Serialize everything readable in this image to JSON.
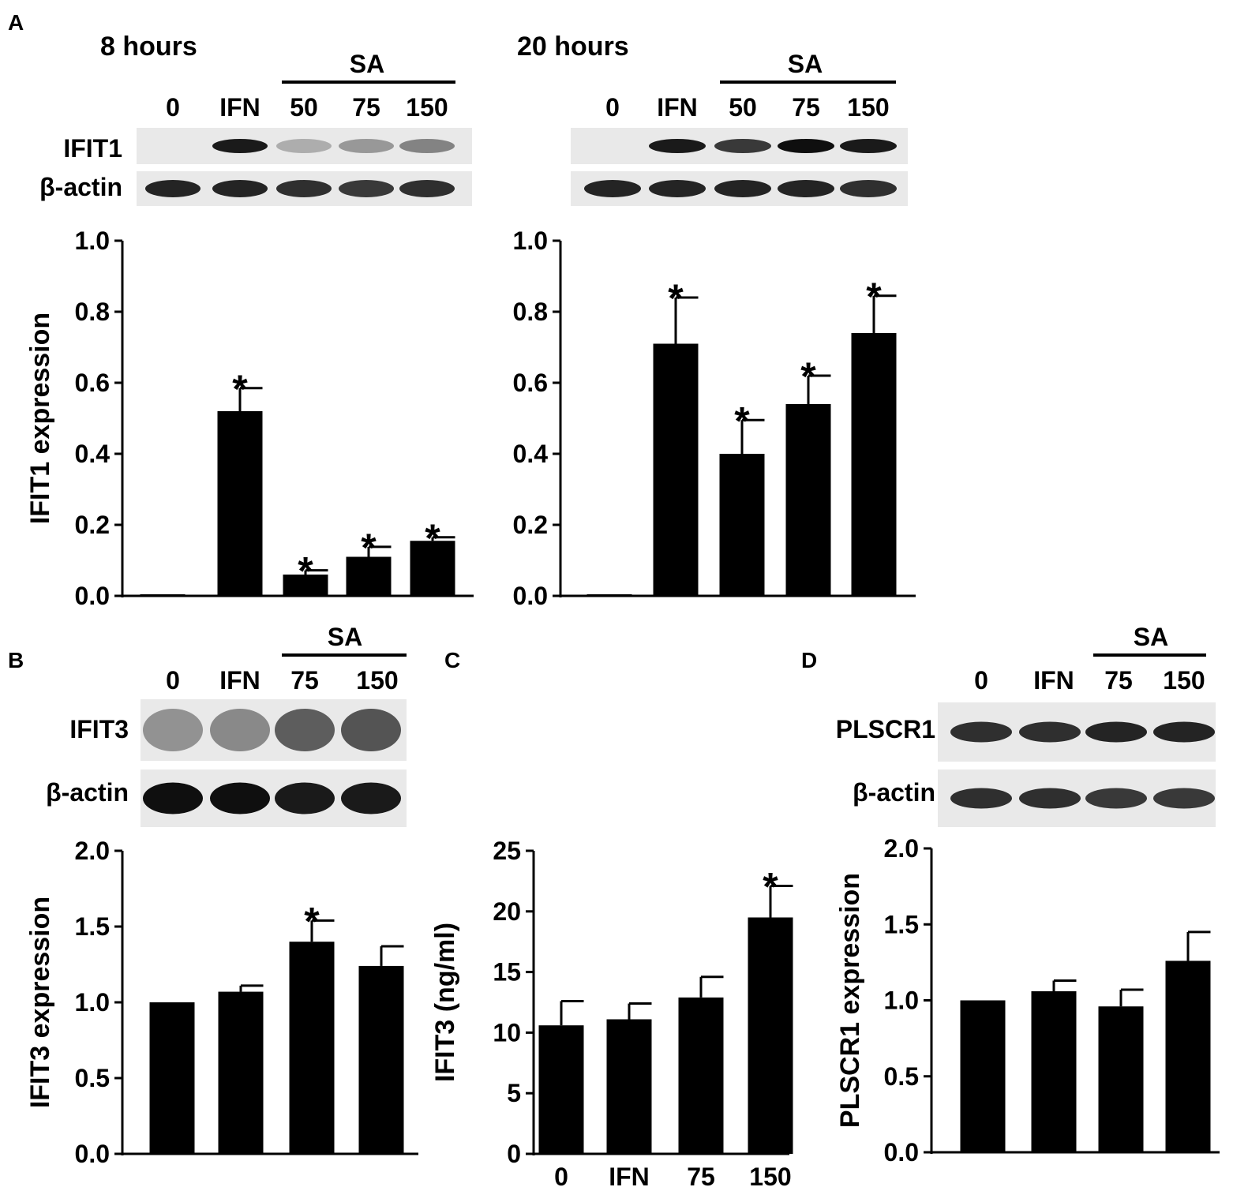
{
  "panels": {
    "A": {
      "letter": "A",
      "left": {
        "title": "8 hours",
        "sa_label": "SA",
        "lane_labels": [
          "0",
          "IFN",
          "50",
          "75",
          "150"
        ],
        "row_labels": [
          "IFIT1",
          "β-actin"
        ],
        "blot": {
          "ifit1": [
            0.0,
            0.95,
            0.25,
            0.35,
            0.45
          ],
          "actin": [
            0.9,
            0.9,
            0.85,
            0.8,
            0.85
          ]
        }
      },
      "right": {
        "title": "20 hours",
        "sa_label": "SA",
        "lane_labels": [
          "0",
          "IFN",
          "50",
          "75",
          "150"
        ],
        "blot": {
          "ifit1": [
            0.0,
            0.95,
            0.8,
            1.0,
            0.95
          ],
          "actin": [
            0.9,
            0.9,
            0.9,
            0.9,
            0.85
          ]
        }
      }
    },
    "B": {
      "letter": "B",
      "sa_label": "SA",
      "lane_labels": [
        "0",
        "IFN",
        "75",
        "150"
      ],
      "row_labels": [
        "IFIT3",
        "β-actin"
      ],
      "blot": {
        "ifit3": [
          0.45,
          0.5,
          0.75,
          0.8
        ],
        "actin": [
          1.0,
          1.0,
          0.95,
          0.95
        ]
      }
    },
    "C": {
      "letter": "C"
    },
    "D": {
      "letter": "D",
      "sa_label": "SA",
      "lane_labels": [
        "0",
        "IFN",
        "75",
        "150"
      ],
      "row_labels": [
        "PLSCR1",
        "β-actin"
      ],
      "blot": {
        "plscr1": [
          0.85,
          0.85,
          0.9,
          0.9
        ],
        "actin": [
          0.85,
          0.85,
          0.8,
          0.8
        ]
      }
    }
  },
  "chart_data": [
    {
      "id": "A-8h",
      "type": "bar",
      "categories": [
        "0",
        "IFN",
        "50",
        "75",
        "150"
      ],
      "values": [
        0.0,
        0.52,
        0.06,
        0.11,
        0.155
      ],
      "errors": [
        0.0,
        0.065,
        0.012,
        0.028,
        0.01
      ],
      "significant": [
        false,
        true,
        true,
        true,
        true
      ],
      "ylabel": "IFIT1 expression",
      "ylim": [
        0,
        1.0
      ],
      "yticks": [
        "0.0",
        "0.2",
        "0.4",
        "0.6",
        "0.8",
        "1.0"
      ],
      "show_xtick_labels": false,
      "color": "#000000"
    },
    {
      "id": "A-20h",
      "type": "bar",
      "categories": [
        "0",
        "IFN",
        "50",
        "75",
        "150"
      ],
      "values": [
        0.0,
        0.71,
        0.4,
        0.54,
        0.74
      ],
      "errors": [
        0.0,
        0.13,
        0.095,
        0.08,
        0.105
      ],
      "significant": [
        false,
        true,
        true,
        true,
        true
      ],
      "ylabel": "",
      "ylim": [
        0,
        1.0
      ],
      "yticks": [
        "0.0",
        "0.2",
        "0.4",
        "0.6",
        "0.8",
        "1.0"
      ],
      "show_xtick_labels": false,
      "color": "#000000"
    },
    {
      "id": "B",
      "type": "bar",
      "categories": [
        "0",
        "IFN",
        "75",
        "150"
      ],
      "values": [
        1.0,
        1.07,
        1.4,
        1.24
      ],
      "errors": [
        0.0,
        0.04,
        0.14,
        0.13
      ],
      "significant": [
        false,
        false,
        true,
        false
      ],
      "ylabel": "IFIT3 expression",
      "ylim": [
        0,
        2.0
      ],
      "yticks": [
        "0.0",
        "0.5",
        "1.0",
        "1.5",
        "2.0"
      ],
      "show_xtick_labels": false,
      "color": "#000000"
    },
    {
      "id": "C",
      "type": "bar",
      "categories": [
        "0",
        "IFN",
        "75",
        "150"
      ],
      "values": [
        10.6,
        11.1,
        12.9,
        19.5
      ],
      "errors": [
        2.0,
        1.3,
        1.7,
        2.6
      ],
      "significant": [
        false,
        false,
        false,
        true
      ],
      "ylabel": "IFIT3 (ng/ml)",
      "ylim": [
        0,
        25
      ],
      "yticks": [
        "0",
        "5",
        "10",
        "15",
        "20",
        "25"
      ],
      "show_xtick_labels": true,
      "color": "#000000"
    },
    {
      "id": "D",
      "type": "bar",
      "categories": [
        "0",
        "IFN",
        "75",
        "150"
      ],
      "values": [
        1.0,
        1.06,
        0.96,
        1.26
      ],
      "errors": [
        0.0,
        0.07,
        0.11,
        0.19
      ],
      "significant": [
        false,
        false,
        false,
        false
      ],
      "ylabel": "PLSCR1 expression",
      "ylim": [
        0,
        2.0
      ],
      "yticks": [
        "0.0",
        "0.5",
        "1.0",
        "1.5",
        "2.0"
      ],
      "show_xtick_labels": false,
      "color": "#000000"
    }
  ],
  "significance_marker": "*"
}
